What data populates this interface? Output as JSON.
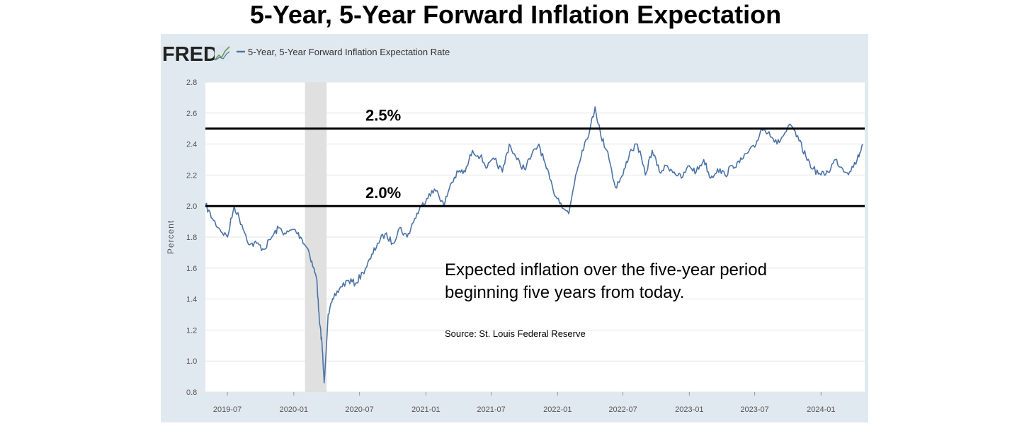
{
  "title": "5-Year, 5-Year Forward Inflation Expectation",
  "fred": {
    "logo_text": "FRED",
    "icon": "fred-line-chart-icon",
    "legend_label": "5-Year, 5-Year Forward Inflation Expectation Rate",
    "series_color": "#4b73a6",
    "panel_color": "#e1e9f0",
    "recession_color": "#e0e0e0"
  },
  "chart_data": {
    "type": "line",
    "ylabel": "Percent",
    "ylim": [
      0.8,
      2.8
    ],
    "yticks": [
      "2.8",
      "2.6",
      "2.4",
      "2.2",
      "2.0",
      "1.8",
      "1.6",
      "1.4",
      "1.2",
      "1.0",
      "0.8"
    ],
    "xlim": [
      "2019-05",
      "2024-05"
    ],
    "xticks": [
      "2019-07",
      "2020-01",
      "2020-07",
      "2021-01",
      "2021-07",
      "2022-01",
      "2022-07",
      "2023-01",
      "2023-07",
      "2024-01"
    ],
    "recession": [
      "2020-02",
      "2020-04"
    ],
    "reference_lines": [
      {
        "value": 2.5,
        "label": "2.5%"
      },
      {
        "value": 2.0,
        "label": "2.0%"
      }
    ],
    "series": [
      {
        "name": "5-Year, 5-Year Forward Inflation Expectation Rate",
        "x": [
          "2019-05-01",
          "2019-05-20",
          "2019-06-10",
          "2019-07-01",
          "2019-07-20",
          "2019-08-10",
          "2019-09-01",
          "2019-09-20",
          "2019-10-10",
          "2019-11-01",
          "2019-11-20",
          "2019-12-10",
          "2020-01-01",
          "2020-01-20",
          "2020-02-10",
          "2020-02-25",
          "2020-03-05",
          "2020-03-12",
          "2020-03-19",
          "2020-03-25",
          "2020-04-05",
          "2020-04-20",
          "2020-05-10",
          "2020-06-01",
          "2020-06-20",
          "2020-07-10",
          "2020-08-01",
          "2020-08-20",
          "2020-09-10",
          "2020-10-01",
          "2020-10-20",
          "2020-11-10",
          "2020-12-01",
          "2020-12-20",
          "2021-01-10",
          "2021-02-01",
          "2021-02-20",
          "2021-03-10",
          "2021-04-01",
          "2021-04-20",
          "2021-05-10",
          "2021-06-01",
          "2021-06-20",
          "2021-07-10",
          "2021-08-01",
          "2021-08-20",
          "2021-09-10",
          "2021-10-01",
          "2021-10-20",
          "2021-11-10",
          "2021-12-01",
          "2021-12-20",
          "2022-01-10",
          "2022-02-01",
          "2022-02-20",
          "2022-03-10",
          "2022-04-01",
          "2022-04-15",
          "2022-05-01",
          "2022-05-20",
          "2022-06-10",
          "2022-07-01",
          "2022-07-20",
          "2022-08-10",
          "2022-09-01",
          "2022-09-20",
          "2022-10-10",
          "2022-11-01",
          "2022-11-20",
          "2022-12-10",
          "2023-01-01",
          "2023-01-20",
          "2023-02-10",
          "2023-03-01",
          "2023-03-20",
          "2023-04-10",
          "2023-05-01",
          "2023-05-20",
          "2023-06-10",
          "2023-07-01",
          "2023-07-20",
          "2023-08-10",
          "2023-09-01",
          "2023-09-20",
          "2023-10-10",
          "2023-11-01",
          "2023-11-20",
          "2023-12-10",
          "2024-01-01",
          "2024-01-20",
          "2024-02-10",
          "2024-03-01",
          "2024-03-20",
          "2024-04-10",
          "2024-04-25"
        ],
        "y": [
          2.01,
          1.92,
          1.85,
          1.8,
          2.0,
          1.88,
          1.75,
          1.76,
          1.72,
          1.8,
          1.86,
          1.82,
          1.85,
          1.8,
          1.72,
          1.6,
          1.52,
          1.25,
          1.12,
          0.86,
          1.3,
          1.4,
          1.48,
          1.52,
          1.5,
          1.57,
          1.66,
          1.76,
          1.82,
          1.76,
          1.86,
          1.8,
          1.92,
          2.0,
          2.08,
          2.1,
          2.0,
          2.14,
          2.22,
          2.22,
          2.36,
          2.32,
          2.25,
          2.3,
          2.22,
          2.4,
          2.3,
          2.24,
          2.32,
          2.4,
          2.24,
          2.1,
          2.02,
          1.95,
          2.2,
          2.36,
          2.5,
          2.64,
          2.45,
          2.35,
          2.12,
          2.2,
          2.35,
          2.4,
          2.2,
          2.36,
          2.22,
          2.26,
          2.22,
          2.18,
          2.26,
          2.22,
          2.3,
          2.18,
          2.24,
          2.2,
          2.26,
          2.28,
          2.34,
          2.38,
          2.5,
          2.48,
          2.4,
          2.46,
          2.52,
          2.42,
          2.32,
          2.24,
          2.2,
          2.22,
          2.3,
          2.24,
          2.22,
          2.3,
          2.4
        ]
      }
    ]
  },
  "annotation": {
    "line1": "Expected inflation over the five-year period",
    "line2": "beginning five years from today.",
    "source": "Source: St. Louis Federal Reserve"
  }
}
